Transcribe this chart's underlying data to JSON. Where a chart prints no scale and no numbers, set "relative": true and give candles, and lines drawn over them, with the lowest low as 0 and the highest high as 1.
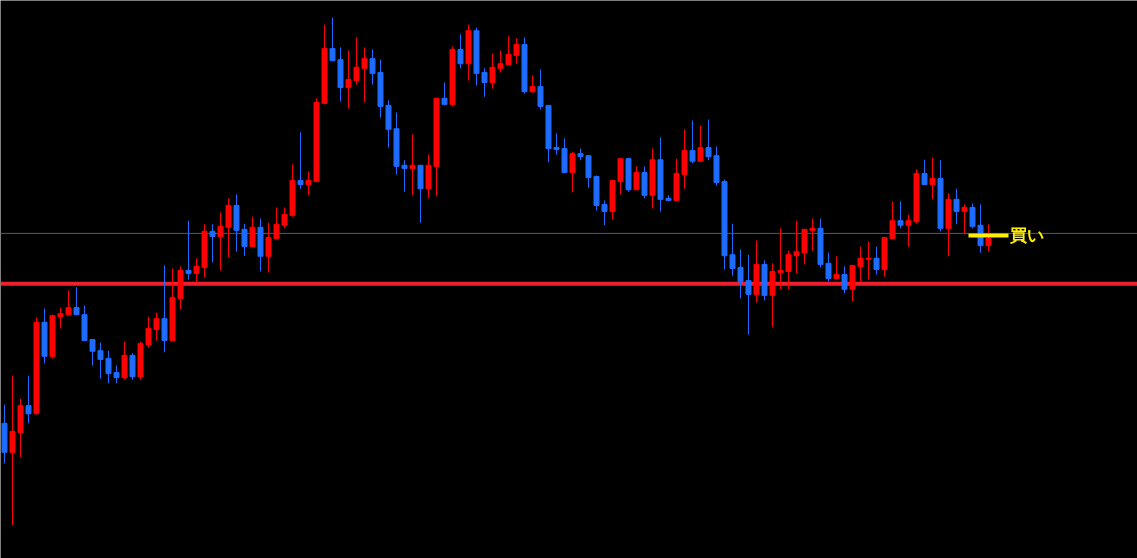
{
  "chart_data": {
    "type": "candlestick",
    "relative": true,
    "tick_labels": false,
    "categories": [
      null,
      null,
      null,
      null,
      null,
      null,
      null,
      null,
      null,
      null,
      null,
      null,
      null,
      null,
      null,
      null,
      null,
      null,
      null,
      null,
      null,
      null,
      null,
      null,
      null,
      null,
      null,
      null,
      null,
      null,
      null,
      null,
      null,
      null,
      null,
      null,
      null,
      null,
      null,
      null,
      null,
      null,
      null,
      null,
      null,
      null,
      null,
      null,
      null,
      null,
      null,
      null,
      null,
      null,
      null,
      null,
      null,
      null,
      null,
      null,
      null,
      null,
      null,
      null,
      null,
      null,
      null,
      null,
      null,
      null,
      null,
      null,
      null,
      null,
      null,
      null,
      null,
      null,
      null,
      null,
      null,
      null,
      null,
      null,
      null,
      null,
      null,
      null,
      null,
      null,
      null,
      null,
      null,
      null,
      null,
      null,
      null,
      null,
      null,
      null,
      null,
      null,
      null,
      null,
      null,
      null,
      null,
      null,
      null,
      null,
      null,
      null,
      null,
      null,
      null,
      null,
      null,
      null,
      null,
      null,
      null,
      null,
      null,
      null
    ],
    "ohlc": [
      [
        0.201,
        0.238,
        0.122,
        0.144
      ],
      [
        0.144,
        0.295,
        0,
        0.185
      ],
      [
        0.183,
        0.25,
        0.134,
        0.236
      ],
      [
        0.236,
        0.295,
        0.201,
        0.22
      ],
      [
        0.22,
        0.409,
        0.219,
        0.4
      ],
      [
        0.4,
        0.427,
        0.319,
        0.333
      ],
      [
        0.333,
        0.415,
        0.329,
        0.413
      ],
      [
        0.411,
        0.429,
        0.388,
        0.417
      ],
      [
        0.415,
        0.463,
        0.413,
        0.429
      ],
      [
        0.429,
        0.469,
        0.415,
        0.415
      ],
      [
        0.415,
        0.433,
        0.364,
        0.364
      ],
      [
        0.366,
        0.366,
        0.315,
        0.343
      ],
      [
        0.344,
        0.36,
        0.289,
        0.327
      ],
      [
        0.329,
        0.344,
        0.28,
        0.299
      ],
      [
        0.301,
        0.315,
        0.28,
        0.291
      ],
      [
        0.291,
        0.362,
        0.287,
        0.335
      ],
      [
        0.335,
        0.339,
        0.287,
        0.293
      ],
      [
        0.293,
        0.362,
        0.287,
        0.358
      ],
      [
        0.356,
        0.411,
        0.35,
        0.388
      ],
      [
        0.386,
        0.419,
        0.364,
        0.407
      ],
      [
        0.407,
        0.512,
        0.341,
        0.364
      ],
      [
        0.364,
        0.506,
        0.364,
        0.449
      ],
      [
        0.447,
        0.51,
        0.425,
        0.502
      ],
      [
        0.502,
        0.6,
        0.484,
        0.496
      ],
      [
        0.496,
        0.526,
        0.478,
        0.51
      ],
      [
        0.508,
        0.593,
        0.488,
        0.579
      ],
      [
        0.579,
        0.593,
        0.518,
        0.569
      ],
      [
        0.569,
        0.616,
        0.502,
        0.589
      ],
      [
        0.587,
        0.644,
        0.528,
        0.63
      ],
      [
        0.63,
        0.652,
        0.539,
        0.581
      ],
      [
        0.583,
        0.594,
        0.531,
        0.549
      ],
      [
        0.549,
        0.608,
        0.549,
        0.587
      ],
      [
        0.587,
        0.604,
        0.5,
        0.53
      ],
      [
        0.53,
        0.596,
        0.498,
        0.567
      ],
      [
        0.565,
        0.626,
        0.563,
        0.593
      ],
      [
        0.591,
        0.626,
        0.585,
        0.612
      ],
      [
        0.61,
        0.711,
        0.608,
        0.679
      ],
      [
        0.679,
        0.774,
        0.663,
        0.671
      ],
      [
        0.671,
        0.697,
        0.65,
        0.679
      ],
      [
        0.677,
        0.841,
        0.677,
        0.833
      ],
      [
        0.831,
        0.986,
        0.829,
        0.939
      ],
      [
        0.939,
        1,
        0.915,
        0.915
      ],
      [
        0.917,
        0.941,
        0.835,
        0.862
      ],
      [
        0.862,
        0.935,
        0.821,
        0.878
      ],
      [
        0.876,
        0.961,
        0.868,
        0.902
      ],
      [
        0.9,
        0.941,
        0.833,
        0.919
      ],
      [
        0.919,
        0.937,
        0.868,
        0.89
      ],
      [
        0.892,
        0.917,
        0.803,
        0.825
      ],
      [
        0.827,
        0.837,
        0.744,
        0.78
      ],
      [
        0.781,
        0.813,
        0.691,
        0.707
      ],
      [
        0.709,
        0.719,
        0.657,
        0.703
      ],
      [
        0.703,
        0.77,
        0.65,
        0.709
      ],
      [
        0.709,
        0.709,
        0.596,
        0.663
      ],
      [
        0.663,
        0.73,
        0.644,
        0.709
      ],
      [
        0.707,
        0.841,
        0.648,
        0.841
      ],
      [
        0.841,
        0.872,
        0.827,
        0.829
      ],
      [
        0.829,
        0.943,
        0.825,
        0.937
      ],
      [
        0.937,
        0.967,
        0.9,
        0.909
      ],
      [
        0.909,
        0.986,
        0.876,
        0.974
      ],
      [
        0.974,
        0.98,
        0.866,
        0.89
      ],
      [
        0.892,
        0.9,
        0.844,
        0.872
      ],
      [
        0.872,
        0.929,
        0.86,
        0.902
      ],
      [
        0.9,
        0.935,
        0.892,
        0.909
      ],
      [
        0.907,
        0.963,
        0.907,
        0.927
      ],
      [
        0.925,
        0.959,
        0.909,
        0.947
      ],
      [
        0.947,
        0.961,
        0.85,
        0.854
      ],
      [
        0.854,
        0.886,
        0.852,
        0.864
      ],
      [
        0.864,
        0.898,
        0.819,
        0.825
      ],
      [
        0.827,
        0.827,
        0.715,
        0.742
      ],
      [
        0.744,
        0.772,
        0.73,
        0.74
      ],
      [
        0.742,
        0.762,
        0.695,
        0.695
      ],
      [
        0.695,
        0.736,
        0.656,
        0.732
      ],
      [
        0.732,
        0.742,
        0.719,
        0.726
      ],
      [
        0.728,
        0.728,
        0.665,
        0.685
      ],
      [
        0.687,
        0.689,
        0.62,
        0.63
      ],
      [
        0.632,
        0.64,
        0.591,
        0.618
      ],
      [
        0.618,
        0.679,
        0.602,
        0.679
      ],
      [
        0.677,
        0.722,
        0.652,
        0.722
      ],
      [
        0.722,
        0.724,
        0.657,
        0.661
      ],
      [
        0.661,
        0.707,
        0.661,
        0.695
      ],
      [
        0.695,
        0.707,
        0.644,
        0.65
      ],
      [
        0.65,
        0.742,
        0.624,
        0.72
      ],
      [
        0.72,
        0.764,
        0.618,
        0.642
      ],
      [
        0.644,
        0.65,
        0.638,
        0.64
      ],
      [
        0.64,
        0.722,
        0.64,
        0.693
      ],
      [
        0.691,
        0.78,
        0.663,
        0.738
      ],
      [
        0.738,
        0.797,
        0.713,
        0.717
      ],
      [
        0.717,
        0.787,
        0.717,
        0.744
      ],
      [
        0.744,
        0.799,
        0.719,
        0.726
      ],
      [
        0.728,
        0.746,
        0.669,
        0.675
      ],
      [
        0.677,
        0.681,
        0.504,
        0.531
      ],
      [
        0.533,
        0.594,
        0.492,
        0.506
      ],
      [
        0.508,
        0.543,
        0.447,
        0.48
      ],
      [
        0.482,
        0.533,
        0.376,
        0.455
      ],
      [
        0.455,
        0.561,
        0.439,
        0.514
      ],
      [
        0.514,
        0.522,
        0.443,
        0.453
      ],
      [
        0.453,
        0.516,
        0.39,
        0.5
      ],
      [
        0.498,
        0.585,
        0.465,
        0.502
      ],
      [
        0.5,
        0.541,
        0.465,
        0.533
      ],
      [
        0.531,
        0.6,
        0.496,
        0.539
      ],
      [
        0.537,
        0.583,
        0.514,
        0.583
      ],
      [
        0.581,
        0.604,
        0.541,
        0.585
      ],
      [
        0.585,
        0.604,
        0.508,
        0.514
      ],
      [
        0.516,
        0.537,
        0.48,
        0.486
      ],
      [
        0.486,
        0.53,
        0.486,
        0.494
      ],
      [
        0.494,
        0.51,
        0.457,
        0.465
      ],
      [
        0.465,
        0.512,
        0.441,
        0.512
      ],
      [
        0.51,
        0.549,
        0.48,
        0.526
      ],
      [
        0.524,
        0.559,
        0.484,
        0.526
      ],
      [
        0.526,
        0.549,
        0.494,
        0.504
      ],
      [
        0.504,
        0.567,
        0.49,
        0.567
      ],
      [
        0.565,
        0.638,
        0.563,
        0.6
      ],
      [
        0.6,
        0.638,
        0.585,
        0.591
      ],
      [
        0.591,
        0.612,
        0.549,
        0.6
      ],
      [
        0.598,
        0.701,
        0.594,
        0.693
      ],
      [
        0.693,
        0.72,
        0.671,
        0.671
      ],
      [
        0.671,
        0.724,
        0.642,
        0.683
      ],
      [
        0.683,
        0.719,
        0.579,
        0.585
      ],
      [
        0.585,
        0.654,
        0.53,
        0.642
      ],
      [
        0.642,
        0.663,
        0.593,
        0.618
      ],
      [
        0.618,
        0.632,
        0.575,
        0.626
      ],
      [
        0.626,
        0.634,
        0.585,
        0.589
      ],
      [
        0.591,
        0.632,
        0.537,
        0.551
      ],
      [
        0.551,
        0.593,
        0.539,
        0.565
      ]
    ],
    "colors": [
      "#1e6cff",
      "#ff0000",
      "#ff0000",
      "#1e6cff",
      "#ff0000",
      "#1e6cff",
      "#ff0000",
      "#ff0000",
      "#ff0000",
      "#1e6cff",
      "#1e6cff",
      "#1e6cff",
      "#1e6cff",
      "#1e6cff",
      "#1e6cff",
      "#ff0000",
      "#1e6cff",
      "#ff0000",
      "#ff0000",
      "#ff0000",
      "#1e6cff",
      "#ff0000",
      "#ff0000",
      "#1e6cff",
      "#ff0000",
      "#ff0000",
      "#1e6cff",
      "#ff0000",
      "#ff0000",
      "#1e6cff",
      "#1e6cff",
      "#ff0000",
      "#1e6cff",
      "#ff0000",
      "#ff0000",
      "#ff0000",
      "#ff0000",
      "#1e6cff",
      "#ff0000",
      "#ff0000",
      "#ff0000",
      "#1e6cff",
      "#1e6cff",
      "#ff0000",
      "#ff0000",
      "#ff0000",
      "#1e6cff",
      "#1e6cff",
      "#1e6cff",
      "#1e6cff",
      "#1e6cff",
      "#ff0000",
      "#1e6cff",
      "#ff0000",
      "#ff0000",
      "#1e6cff",
      "#ff0000",
      "#1e6cff",
      "#ff0000",
      "#1e6cff",
      "#1e6cff",
      "#ff0000",
      "#ff0000",
      "#ff0000",
      "#ff0000",
      "#1e6cff",
      "#ff0000",
      "#1e6cff",
      "#1e6cff",
      "#1e6cff",
      "#1e6cff",
      "#ff0000",
      "#1e6cff",
      "#1e6cff",
      "#1e6cff",
      "#1e6cff",
      "#ff0000",
      "#ff0000",
      "#1e6cff",
      "#ff0000",
      "#1e6cff",
      "#ff0000",
      "#1e6cff",
      "#1e6cff",
      "#ff0000",
      "#ff0000",
      "#1e6cff",
      "#ff0000",
      "#1e6cff",
      "#1e6cff",
      "#1e6cff",
      "#1e6cff",
      "#1e6cff",
      "#1e6cff",
      "#ff0000",
      "#1e6cff",
      "#ff0000",
      "#ff0000",
      "#ff0000",
      "#ff0000",
      "#ff0000",
      "#ff0000",
      "#1e6cff",
      "#1e6cff",
      "#ff0000",
      "#1e6cff",
      "#ff0000",
      "#ff0000",
      "#ff0000",
      "#1e6cff",
      "#ff0000",
      "#ff0000",
      "#1e6cff",
      "#ff0000",
      "#ff0000",
      "#1e6cff",
      "#ff0000",
      "#1e6cff",
      "#ff0000",
      "#1e6cff",
      "#ff0000",
      "#1e6cff",
      "#1e6cff",
      "#ff0000"
    ],
    "ref_lines": [
      {
        "axis": "y",
        "value": 0.476,
        "color": "#ee2030"
      },
      {
        "axis": "y",
        "value": 0.575,
        "color": "#55557a"
      }
    ],
    "annotations": [
      {
        "text": "買い",
        "y": 0.571
      }
    ]
  }
}
